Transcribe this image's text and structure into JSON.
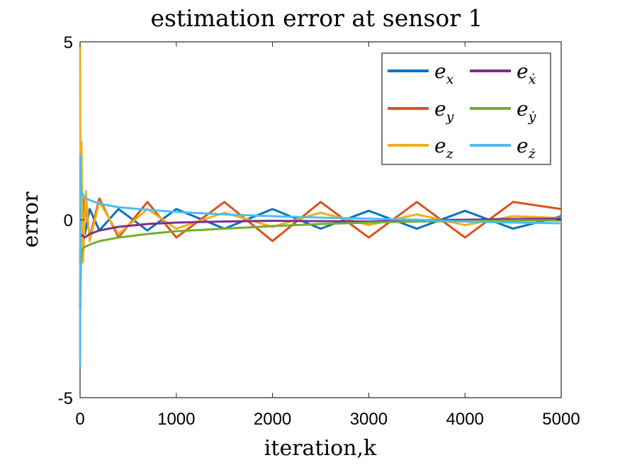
{
  "chart_data": {
    "type": "line",
    "title": "estimation error at sensor 1",
    "xlabel": "iteration,k",
    "ylabel": "error",
    "xlim": [
      0,
      5000
    ],
    "ylim": [
      -5,
      5
    ],
    "x_ticks": [
      0,
      1000,
      2000,
      3000,
      4000,
      5000
    ],
    "y_ticks": [
      -5,
      0,
      5
    ],
    "grid": false,
    "legend": {
      "placement": "top-right",
      "columns": 2
    },
    "series": [
      {
        "name": "e",
        "subscript": "x",
        "color": "#0072BD",
        "x": [
          1,
          10,
          25,
          50,
          100,
          200,
          400,
          700,
          1000,
          1500,
          2000,
          2500,
          3000,
          3500,
          4000,
          4500,
          5000
        ],
        "y": [
          -2.5,
          0.9,
          0.6,
          -0.4,
          0.3,
          -0.3,
          0.3,
          -0.3,
          0.3,
          -0.25,
          0.3,
          -0.25,
          0.25,
          -0.25,
          0.25,
          -0.25,
          0.1
        ]
      },
      {
        "name": "e",
        "subscript": "y",
        "color": "#D95319",
        "x": [
          1,
          10,
          25,
          50,
          100,
          200,
          400,
          700,
          1000,
          1500,
          2000,
          2500,
          3000,
          3500,
          4000,
          4500,
          5000
        ],
        "y": [
          -1.2,
          0.8,
          -0.6,
          0.6,
          -0.5,
          0.6,
          -0.5,
          0.5,
          -0.5,
          0.5,
          -0.6,
          0.5,
          -0.5,
          0.5,
          -0.5,
          0.5,
          0.3
        ]
      },
      {
        "name": "e",
        "subscript": "z",
        "color": "#EDB120",
        "x": [
          1,
          5,
          15,
          30,
          60,
          100,
          200,
          400,
          700,
          1000,
          1500,
          2000,
          2500,
          3000,
          3500,
          4000,
          4500,
          5000
        ],
        "y": [
          4.9,
          -2.5,
          2.2,
          -1.2,
          0.8,
          -0.6,
          0.5,
          -0.4,
          0.3,
          -0.25,
          0.2,
          -0.2,
          0.2,
          -0.15,
          0.15,
          -0.15,
          0.1,
          0.05
        ]
      },
      {
        "name": "e",
        "subscript": "ẋ",
        "color": "#7E2F8E",
        "x": [
          1,
          50,
          100,
          200,
          400,
          700,
          1000,
          1500,
          2000,
          2500,
          3000,
          3500,
          4000,
          4500,
          5000
        ],
        "y": [
          -0.4,
          -0.5,
          -0.4,
          -0.3,
          -0.2,
          -0.12,
          -0.08,
          -0.05,
          -0.03,
          -0.04,
          -0.05,
          -0.02,
          0.0,
          0.02,
          0.03
        ]
      },
      {
        "name": "e",
        "subscript": "ẏ",
        "color": "#77AC30",
        "x": [
          1,
          10,
          30,
          60,
          100,
          200,
          400,
          700,
          1000,
          1500,
          2000,
          2500,
          3000,
          3500,
          4000,
          4500,
          5000
        ],
        "y": [
          -2.2,
          -1.0,
          -0.8,
          -0.75,
          -0.7,
          -0.6,
          -0.5,
          -0.4,
          -0.32,
          -0.25,
          -0.18,
          -0.12,
          -0.08,
          -0.05,
          -0.04,
          -0.02,
          -0.02
        ]
      },
      {
        "name": "e",
        "subscript": "ż",
        "color": "#4DBEEE",
        "x": [
          1,
          3,
          8,
          15,
          30,
          60,
          100,
          200,
          400,
          700,
          1000,
          1500,
          2000,
          2500,
          3000,
          3500,
          4000,
          4500,
          5000
        ],
        "y": [
          -4.1,
          1.8,
          1.0,
          0.8,
          0.7,
          0.6,
          0.55,
          0.45,
          0.35,
          0.28,
          0.22,
          0.15,
          0.1,
          0.06,
          0.03,
          0.0,
          -0.05,
          -0.08,
          -0.1
        ]
      }
    ]
  }
}
